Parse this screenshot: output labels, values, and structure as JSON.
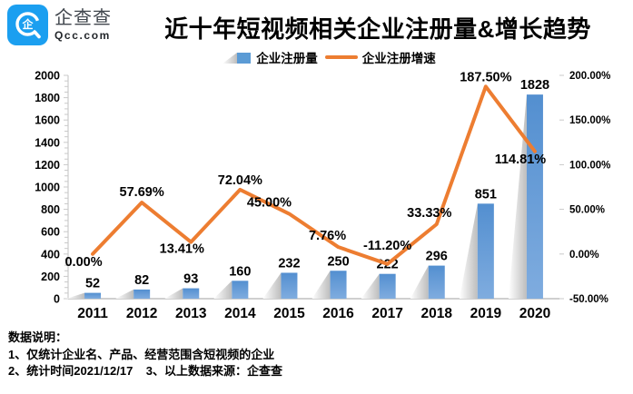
{
  "brand": {
    "name_cn": "企查查",
    "name_en": "Qcc.com",
    "logo_char": "企",
    "logo_color": "#1b9ff0"
  },
  "title": "近十年短视频相关企业注册量&增长趋势",
  "legend": {
    "bar_label": "企业注册量",
    "line_label": "企业注册增速"
  },
  "chart_data": {
    "type": "combo-bar-line",
    "categories": [
      "2011",
      "2012",
      "2013",
      "2014",
      "2015",
      "2016",
      "2017",
      "2018",
      "2019",
      "2020"
    ],
    "series": [
      {
        "name": "企业注册量",
        "type": "bar",
        "axis": "left",
        "color": "#5B9BD5",
        "values": [
          52,
          82,
          93,
          160,
          232,
          250,
          222,
          296,
          851,
          1828
        ]
      },
      {
        "name": "企业注册增速",
        "type": "line",
        "axis": "right",
        "color": "#ED7D31",
        "values": [
          0.0,
          57.69,
          13.41,
          72.04,
          45.0,
          7.76,
          -11.2,
          33.33,
          187.5,
          114.81
        ],
        "point_labels": [
          "0.00%",
          "57.69%",
          "13.41%",
          "72.04%",
          "45.00%",
          "7.76%",
          "-11.20%",
          "33.33%",
          "187.50%",
          "114.81%"
        ]
      }
    ],
    "left_axis": {
      "min": 0,
      "max": 2000,
      "step": 200
    },
    "right_axis": {
      "min": -50,
      "max": 200,
      "step": 50,
      "labels": [
        "-50.00%",
        "0.00%",
        "50.00%",
        "100.00%",
        "150.00%",
        "200.00%"
      ]
    },
    "grid": false,
    "legend_position": "top",
    "bar_shadow_color": "#BDBDBD"
  },
  "footer": {
    "heading": "数据说明：",
    "note1": "1、仅统计企业名、产品、经营范围含短视频的企业",
    "note2": "2、统计时间2021/12/17    3、以上数据来源：企查查"
  }
}
